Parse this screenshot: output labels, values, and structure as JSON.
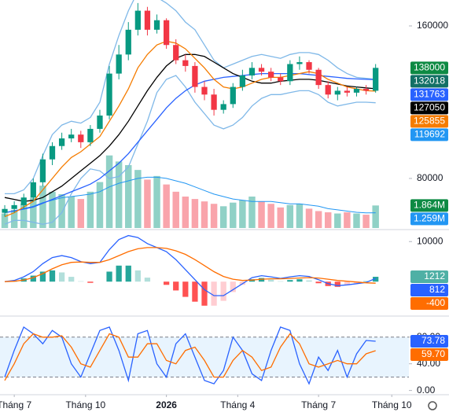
{
  "chart_data": [
    {
      "type": "candlestick",
      "xlim": [
        -0.5,
        42.5
      ],
      "xticks": [
        {
          "value": 1,
          "label": "Tháng 7"
        },
        {
          "value": 8.5,
          "label": "Tháng 10"
        },
        {
          "value": 17,
          "label": "2026",
          "style": "bold"
        },
        {
          "value": 24.5,
          "label": "Tháng 4"
        },
        {
          "value": 33,
          "label": "Tháng 7"
        },
        {
          "value": 40.7,
          "label": "Tháng 10"
        }
      ],
      "ylim": [
        54000,
        173600
      ],
      "yticks": [
        80000,
        160000
      ],
      "up_color": "#089981",
      "down_color": "#f23645",
      "open": [
        62000,
        64000,
        66000,
        70000,
        78000,
        90000,
        97000,
        101000,
        103000,
        99000,
        106000,
        113000,
        135000,
        145000,
        158000,
        168000,
        158000,
        163000,
        150000,
        142000,
        139000,
        128000,
        124000,
        116000,
        119000,
        128000,
        134000,
        138000,
        136000,
        133000,
        131000,
        140000,
        141000,
        137000,
        129000,
        124000,
        126000,
        125000,
        127000,
        126000
      ],
      "high": [
        66000,
        68000,
        72000,
        80000,
        93000,
        99000,
        104000,
        106000,
        105000,
        108000,
        116000,
        139000,
        150000,
        162000,
        172000,
        170000,
        166000,
        164000,
        153000,
        145000,
        141000,
        131000,
        127000,
        121000,
        130000,
        137000,
        141000,
        140000,
        138000,
        135000,
        142000,
        144000,
        142000,
        138000,
        131000,
        128000,
        128000,
        128000,
        129000,
        140000
      ],
      "low": [
        60000,
        62000,
        64000,
        68000,
        76000,
        87000,
        95000,
        99000,
        96000,
        97000,
        104000,
        111000,
        132000,
        142000,
        155000,
        155000,
        156000,
        148000,
        140000,
        136000,
        125000,
        121000,
        113000,
        114000,
        117000,
        126000,
        132000,
        134000,
        131000,
        129000,
        129000,
        137000,
        135000,
        127000,
        122000,
        121000,
        123000,
        123000,
        124000,
        125000
      ],
      "close": [
        64000,
        66000,
        70000,
        78000,
        90000,
        97000,
        101000,
        103000,
        99000,
        106000,
        113000,
        135000,
        145000,
        158000,
        168000,
        158000,
        163000,
        150000,
        142000,
        139000,
        128000,
        124000,
        116000,
        119000,
        128000,
        134000,
        138000,
        136000,
        133000,
        131000,
        140000,
        141000,
        137000,
        129000,
        124000,
        126000,
        125000,
        127000,
        126000,
        138000
      ],
      "lines": [
        {
          "color": "#7fb8e8",
          "values": [
            72000,
            72000,
            74000,
            80000,
            92000,
            103000,
            108000,
            110000,
            109000,
            112000,
            120000,
            140000,
            155000,
            168000,
            178000,
            178000,
            175000,
            172000,
            168000,
            162000,
            158000,
            150000,
            142000,
            138000,
            140000,
            142000,
            144000,
            145000,
            144000,
            143000,
            145000,
            146000,
            146000,
            145000,
            142000,
            138000,
            135000,
            133000,
            132500,
            132018
          ]
        },
        {
          "color": "#7fb8e8",
          "values": [
            56000,
            58000,
            58000,
            57000,
            56000,
            57000,
            62000,
            72000,
            80000,
            85000,
            84000,
            80000,
            81000,
            86000,
            98000,
            110000,
            125000,
            132000,
            134000,
            128000,
            120000,
            114000,
            108000,
            106000,
            108000,
            112000,
            118000,
            122000,
            124000,
            124000,
            125000,
            126000,
            126000,
            124000,
            120000,
            118000,
            119000,
            120000,
            120000,
            119692
          ]
        },
        {
          "color": "#2962ff",
          "values": [
            62000,
            63000,
            64000,
            65000,
            67000,
            69000,
            71000,
            73000,
            75000,
            77000,
            80000,
            84000,
            88000,
            93000,
            99000,
            105000,
            111000,
            117000,
            122000,
            126000,
            129000,
            131000,
            132000,
            133000,
            133500,
            134000,
            134500,
            135000,
            135000,
            135000,
            135000,
            135000,
            134500,
            134000,
            133500,
            133000,
            132500,
            132200,
            132000,
            131763
          ]
        },
        {
          "color": "#000000",
          "values": [
            70000,
            69000,
            68000,
            68500,
            70000,
            73000,
            76000,
            80000,
            84000,
            88000,
            92000,
            97000,
            103000,
            110000,
            118000,
            126000,
            133000,
            139000,
            143000,
            145000,
            145000,
            144000,
            141000,
            138000,
            135000,
            133000,
            131000,
            130000,
            130000,
            131000,
            131500,
            132000,
            132000,
            131500,
            130500,
            129500,
            128500,
            128000,
            127500,
            127050
          ]
        },
        {
          "color": "#f57c00",
          "values": [
            60000,
            62000,
            65000,
            68000,
            74000,
            80000,
            86000,
            91000,
            94000,
            98000,
            102000,
            110000,
            118000,
            127000,
            138000,
            145000,
            150000,
            152000,
            151000,
            148000,
            143000,
            138000,
            132000,
            128000,
            127000,
            128000,
            130000,
            132000,
            133000,
            133000,
            134000,
            135000,
            136000,
            135000,
            132000,
            130000,
            128000,
            127000,
            126000,
            125855
          ]
        }
      ],
      "volume": {
        "ylim": [
          0,
          6500000
        ],
        "values": [
          1200000,
          1500000,
          2000000,
          2500000,
          3500000,
          3000000,
          2800000,
          2600000,
          2400000,
          3000000,
          3800000,
          6000000,
          5500000,
          5200000,
          4800000,
          4000000,
          4300000,
          3600000,
          3000000,
          2600000,
          2400000,
          2200000,
          2000000,
          1800000,
          2100000,
          2300000,
          2600000,
          2200000,
          2000000,
          1700000,
          1900000,
          2000000,
          1600000,
          1400000,
          1300000,
          1200000,
          1300000,
          1200000,
          1100000,
          1864000
        ],
        "ma": {
          "color": "#2196f3",
          "values": [
            1300000,
            1400000,
            1600000,
            1800000,
            2100000,
            2300000,
            2500000,
            2600000,
            2700000,
            2800000,
            3000000,
            3400000,
            3700000,
            3900000,
            4100000,
            4200000,
            4200000,
            4100000,
            3900000,
            3700000,
            3400000,
            3100000,
            2800000,
            2600000,
            2400000,
            2300000,
            2200000,
            2200000,
            2200000,
            2100000,
            2000000,
            2000000,
            1900000,
            1800000,
            1600000,
            1500000,
            1400000,
            1300000,
            1250000,
            1259000
          ]
        }
      },
      "tags": [
        {
          "value": 138000,
          "color": "#0d8a43"
        },
        {
          "value": 132018,
          "color": "#137066"
        },
        {
          "value": 131763,
          "color": "#2962ff"
        },
        {
          "value": 127050,
          "color": "#000000"
        },
        {
          "value": 125855,
          "color": "#f57c00"
        },
        {
          "value": 119692,
          "color": "#2196f3"
        }
      ],
      "volume_tags": [
        {
          "value": 1864000,
          "label": "1.864M",
          "color": "#0d8a43"
        },
        {
          "value": 1259000,
          "label": "1.259M",
          "color": "#2196f3"
        }
      ]
    },
    {
      "type": "macd",
      "ylim": [
        -8200,
        12400
      ],
      "yticks": [
        10000
      ],
      "histogram": {
        "values": [
          0,
          200,
          800,
          1500,
          2500,
          2800,
          2300,
          1200,
          100,
          -300,
          0,
          2500,
          4000,
          4000,
          2800,
          1000,
          0,
          -800,
          -2200,
          -3800,
          -5000,
          -6000,
          -6000,
          -4800,
          -2600,
          -800,
          600,
          900,
          500,
          100,
          400,
          600,
          300,
          -400,
          -1100,
          -1300,
          -900,
          -400,
          100,
          1212
        ]
      },
      "series": [
        {
          "color": "#2962ff",
          "values": [
            0,
            300,
            1200,
            2500,
            4500,
            6000,
            6500,
            6000,
            5000,
            4500,
            4800,
            8000,
            10500,
            11500,
            11000,
            9500,
            8500,
            7500,
            5500,
            3000,
            500,
            -2000,
            -3500,
            -3500,
            -2000,
            -500,
            1000,
            1500,
            1200,
            800,
            1200,
            1500,
            1300,
            500,
            -500,
            -1000,
            -800,
            -500,
            -200,
            812
          ]
        },
        {
          "color": "#ff6d00",
          "values": [
            0,
            100,
            400,
            1000,
            2000,
            3200,
            4200,
            4800,
            4900,
            4800,
            4800,
            5500,
            6500,
            7500,
            8200,
            8500,
            8500,
            8300,
            7700,
            6800,
            5500,
            4000,
            2500,
            1300,
            600,
            300,
            400,
            600,
            700,
            700,
            800,
            900,
            1000,
            900,
            600,
            300,
            100,
            -100,
            -300,
            -400
          ]
        }
      ],
      "tags": [
        {
          "value": 1212,
          "color": "#4fb0a5"
        },
        {
          "value": 812,
          "color": "#2962ff"
        },
        {
          "value": -400,
          "color": "#ff6d00"
        }
      ]
    },
    {
      "type": "stochastic",
      "ylim": [
        -4,
        108
      ],
      "yticks": [
        {
          "value": 0,
          "label": "0.00"
        },
        {
          "value": 40,
          "label": "40.00"
        },
        {
          "value": 80,
          "label": "80.00"
        }
      ],
      "levels": [
        20,
        80
      ],
      "series": [
        {
          "color": "#2962ff",
          "values": [
            20,
            60,
            95,
            85,
            70,
            90,
            80,
            40,
            20,
            55,
            90,
            95,
            60,
            15,
            85,
            90,
            40,
            20,
            70,
            85,
            50,
            15,
            10,
            30,
            80,
            60,
            25,
            15,
            60,
            95,
            90,
            40,
            10,
            50,
            30,
            60,
            20,
            55,
            75,
            73.78
          ]
        },
        {
          "color": "#ff6d00",
          "values": [
            15,
            40,
            70,
            85,
            80,
            80,
            82,
            65,
            40,
            35,
            60,
            85,
            80,
            50,
            50,
            70,
            70,
            45,
            40,
            60,
            65,
            45,
            20,
            20,
            45,
            60,
            50,
            30,
            35,
            65,
            85,
            70,
            40,
            35,
            40,
            45,
            40,
            40,
            55,
            59.7
          ]
        }
      ],
      "tags": [
        {
          "value": 73.78,
          "label": "73.78",
          "color": "#2962ff"
        },
        {
          "value": 59.7,
          "label": "59.70",
          "color": "#ff6d00"
        }
      ]
    }
  ]
}
